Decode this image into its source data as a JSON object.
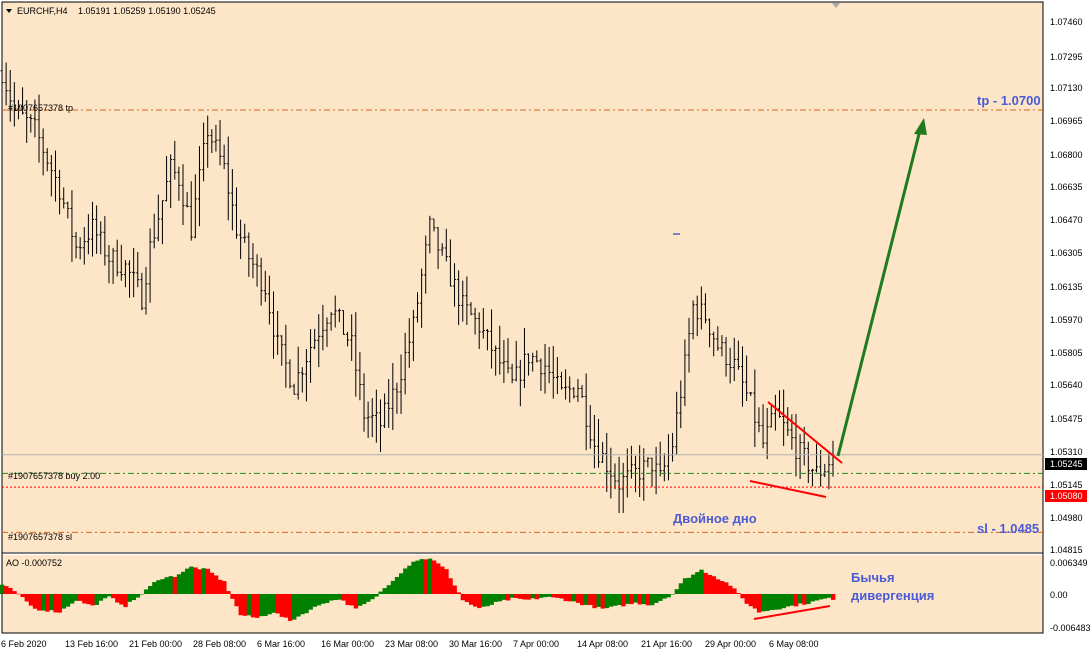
{
  "header": {
    "symbol": "EURCHF,H4",
    "ohlc": "1.05191 1.05259 1.05190 1.05245"
  },
  "colors": {
    "background": "#fde5c8",
    "bars": "#000000",
    "tp_line": "#d2691e",
    "sl_line": "#d2691e",
    "buy_line": "#228b22",
    "trend_line": "#ff0000",
    "arrow": "#1e7b1e",
    "ao_up": "#008000",
    "ao_down": "#ff0000",
    "annotation": "#4a5bd4"
  },
  "price_axis": {
    "ticks": [
      "1.07460",
      "1.07295",
      "1.07130",
      "1.06965",
      "1.06800",
      "1.06635",
      "1.06470",
      "1.06305",
      "1.06135",
      "1.05970",
      "1.05805",
      "1.05640",
      "1.05475",
      "1.05310",
      "1.05145",
      "1.04980",
      "1.04815"
    ],
    "current_price": "1.05245",
    "stop_price": "1.05080"
  },
  "ao_axis": {
    "ticks": [
      "0.006349",
      "0.00",
      "-0.006483"
    ]
  },
  "time_axis": {
    "labels": [
      "6 Feb 2020",
      "13 Feb 16:00",
      "21 Feb 00:00",
      "28 Feb 08:00",
      "6 Mar 16:00",
      "16 Mar 00:00",
      "23 Mar 08:00",
      "30 Mar 16:00",
      "7 Apr 00:00",
      "14 Apr 08:00",
      "21 Apr 16:00",
      "29 Apr 00:00",
      "6 May 08:00"
    ]
  },
  "order_labels": {
    "tp": "#1907657378 tp",
    "buy": "#1907657378 buy 2.00",
    "sl": "#1907657378 sl"
  },
  "annotations": {
    "tp": "tp - 1.0700",
    "sl": "sl - 1.0485",
    "double_bottom": "Двойное дно",
    "divergence_line1": "Бычья",
    "divergence_line2": "дивергенция"
  },
  "indicator": {
    "label": "AO -0.000752"
  },
  "chart_data": {
    "type": "bar",
    "symbol": "EURCHF",
    "timeframe": "H4",
    "y_range": [
      1.0475,
      1.0755
    ],
    "levels": {
      "tp": 1.07,
      "buy": 1.0515,
      "stop": 1.0508,
      "sl": 1.0485,
      "current": 1.05245
    },
    "price_path": [
      [
        0,
        1.072
      ],
      [
        3,
        1.07
      ],
      [
        8,
        1.069
      ],
      [
        14,
        1.066
      ],
      [
        18,
        1.063
      ],
      [
        22,
        1.064
      ],
      [
        26,
        1.0625
      ],
      [
        30,
        1.062
      ],
      [
        34,
        1.0605
      ],
      [
        36,
        1.063
      ],
      [
        41,
        1.067
      ],
      [
        43,
        1.0665
      ],
      [
        46,
        1.064
      ],
      [
        50,
        1.069
      ],
      [
        54,
        1.067
      ],
      [
        57,
        1.064
      ],
      [
        60,
        1.0625
      ],
      [
        64,
        1.061
      ],
      [
        67,
        1.058
      ],
      [
        71,
        1.056
      ],
      [
        75,
        1.058
      ],
      [
        80,
        1.06
      ],
      [
        85,
        1.058
      ],
      [
        88,
        1.0545
      ],
      [
        92,
        1.054
      ],
      [
        96,
        1.056
      ],
      [
        100,
        1.059
      ],
      [
        104,
        1.064
      ],
      [
        108,
        1.062
      ],
      [
        112,
        1.06
      ],
      [
        116,
        1.059
      ],
      [
        120,
        1.0575
      ],
      [
        124,
        1.056
      ],
      [
        128,
        1.0575
      ],
      [
        132,
        1.057
      ],
      [
        136,
        1.0555
      ],
      [
        140,
        1.056
      ],
      [
        144,
        1.053
      ],
      [
        147,
        1.052
      ],
      [
        150,
        1.051
      ],
      [
        154,
        1.0515
      ],
      [
        158,
        1.052
      ],
      [
        160,
        1.0512
      ],
      [
        163,
        1.053
      ],
      [
        166,
        1.057
      ],
      [
        168,
        1.06
      ],
      [
        171,
        1.0595
      ],
      [
        174,
        1.058
      ],
      [
        178,
        1.057
      ],
      [
        182,
        1.055
      ],
      [
        185,
        1.053
      ],
      [
        188,
        1.0545
      ],
      [
        191,
        1.0535
      ],
      [
        194,
        1.0525
      ],
      [
        198,
        1.0515
      ],
      [
        200,
        1.0518
      ],
      [
        202,
        1.0524
      ]
    ],
    "ao_path": [
      [
        0,
        0.0015
      ],
      [
        3,
        0.0005
      ],
      [
        8,
        -0.0025
      ],
      [
        14,
        -0.003
      ],
      [
        18,
        -0.001
      ],
      [
        22,
        -0.002
      ],
      [
        26,
        -0.0005
      ],
      [
        30,
        -0.002
      ],
      [
        34,
        0.0
      ],
      [
        38,
        0.0025
      ],
      [
        42,
        0.003
      ],
      [
        46,
        0.0045
      ],
      [
        50,
        0.004
      ],
      [
        54,
        0.002
      ],
      [
        58,
        -0.0035
      ],
      [
        62,
        -0.004
      ],
      [
        66,
        -0.003
      ],
      [
        70,
        -0.0045
      ],
      [
        74,
        -0.003
      ],
      [
        78,
        -0.0015
      ],
      [
        82,
        -0.0008
      ],
      [
        86,
        -0.0025
      ],
      [
        90,
        -0.001
      ],
      [
        96,
        0.003
      ],
      [
        100,
        0.0055
      ],
      [
        104,
        0.006
      ],
      [
        108,
        0.004
      ],
      [
        112,
        -0.001
      ],
      [
        116,
        -0.0025
      ],
      [
        120,
        -0.0015
      ],
      [
        124,
        -0.0008
      ],
      [
        128,
        -0.001
      ],
      [
        132,
        -0.0005
      ],
      [
        136,
        -0.0008
      ],
      [
        140,
        -0.0015
      ],
      [
        146,
        -0.0025
      ],
      [
        150,
        -0.002
      ],
      [
        154,
        -0.0015
      ],
      [
        158,
        -0.0018
      ],
      [
        163,
        0.0
      ],
      [
        166,
        0.0025
      ],
      [
        170,
        0.004
      ],
      [
        173,
        0.003
      ],
      [
        177,
        0.0015
      ],
      [
        181,
        -0.0015
      ],
      [
        184,
        -0.003
      ],
      [
        188,
        -0.0025
      ],
      [
        192,
        -0.002
      ],
      [
        196,
        -0.0015
      ],
      [
        200,
        -0.0008
      ],
      [
        202,
        -0.0008
      ]
    ]
  }
}
